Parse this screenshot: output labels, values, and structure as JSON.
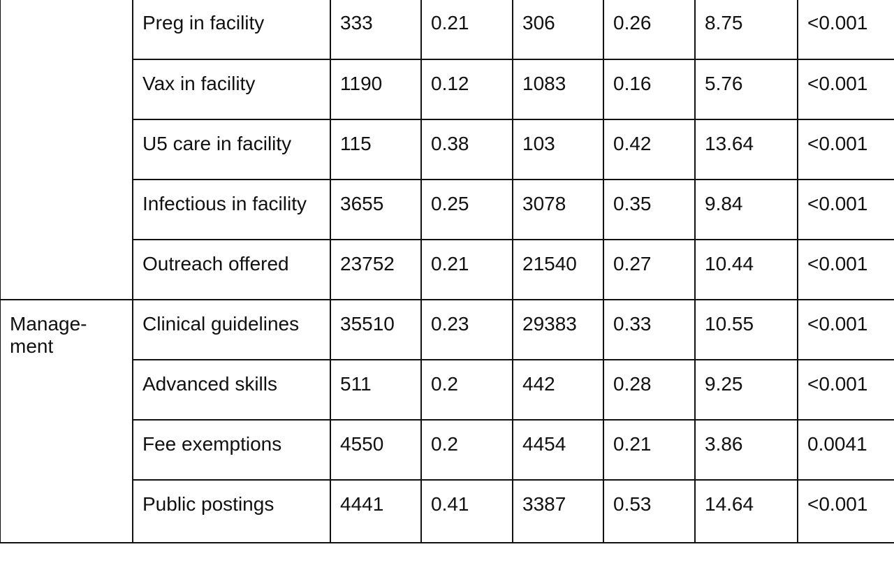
{
  "table": {
    "groups": [
      {
        "label": "",
        "rows": [
          {
            "item": "Preg in facility",
            "v1": "333",
            "v2": "0.21",
            "v3": "306",
            "v4": "0.26",
            "v5": "8.75",
            "p": "<0.001"
          },
          {
            "item": "Vax in facility",
            "v1": "1190",
            "v2": "0.12",
            "v3": "1083",
            "v4": "0.16",
            "v5": "5.76",
            "p": "<0.001"
          },
          {
            "item": "U5 care in facility",
            "v1": "115",
            "v2": "0.38",
            "v3": "103",
            "v4": "0.42",
            "v5": "13.64",
            "p": "<0.001"
          },
          {
            "item": "Infectious in facility",
            "v1": "3655",
            "v2": "0.25",
            "v3": "3078",
            "v4": "0.35",
            "v5": "9.84",
            "p": "<0.001"
          },
          {
            "item": "Outreach offered",
            "v1": "23752",
            "v2": "0.21",
            "v3": "21540",
            "v4": "0.27",
            "v5": "10.44",
            "p": "<0.001"
          }
        ]
      },
      {
        "label": "Manage-\nment",
        "rows": [
          {
            "item": "Clinical guidelines",
            "v1": "35510",
            "v2": "0.23",
            "v3": "29383",
            "v4": "0.33",
            "v5": "10.55",
            "p": "<0.001"
          },
          {
            "item": "Advanced skills",
            "v1": "511",
            "v2": "0.2",
            "v3": "442",
            "v4": "0.28",
            "v5": "9.25",
            "p": "<0.001"
          },
          {
            "item": "Fee exemptions",
            "v1": "4550",
            "v2": "0.2",
            "v3": "4454",
            "v4": "0.21",
            "v5": "3.86",
            "p": "0.0041"
          },
          {
            "item": "Public postings",
            "v1": "4441",
            "v2": "0.41",
            "v3": "3387",
            "v4": "0.53",
            "v5": "14.64",
            "p": "<0.001"
          }
        ]
      }
    ]
  }
}
